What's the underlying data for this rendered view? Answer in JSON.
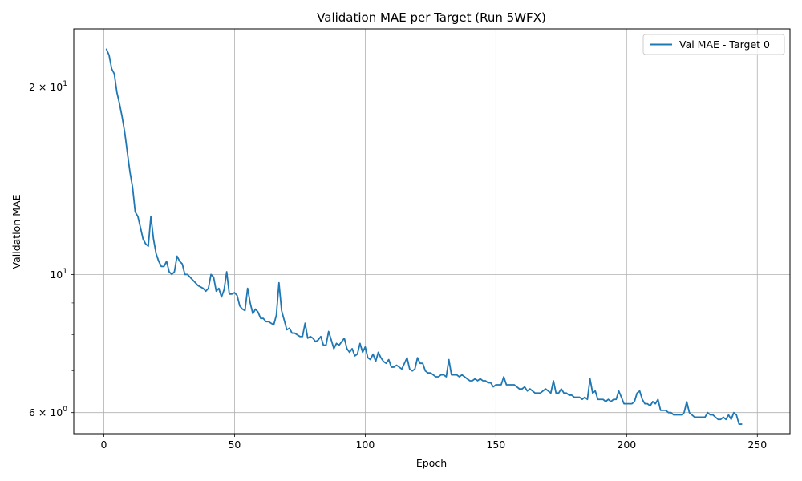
{
  "chart_data": {
    "type": "line",
    "title": "Validation MAE per Target (Run 5WFX)",
    "xlabel": "Epoch",
    "ylabel": "Validation MAE",
    "yscale": "log",
    "xlim": [
      -11.5,
      262.5
    ],
    "ylim": [
      5.55,
      24.8
    ],
    "grid": true,
    "legend_position": "top-right",
    "line_color": "#1f77b4",
    "x_ticks": [
      0,
      50,
      100,
      150,
      200,
      250
    ],
    "x_tick_labels": [
      "0",
      "50",
      "100",
      "150",
      "200",
      "250"
    ],
    "y_major_ticks": [
      {
        "value": 6,
        "base": "6",
        "exp": "0"
      },
      {
        "value": 10,
        "base": "10",
        "exp": "1"
      },
      {
        "value": 20,
        "base": "2",
        "exp": "1"
      }
    ],
    "y_minor_ticks": [
      7,
      8,
      9
    ],
    "series": [
      {
        "name": "Val MAE - Target 0",
        "x_start": 1,
        "x_step": 1,
        "values": [
          23.0,
          22.5,
          21.4,
          21.0,
          19.6,
          18.8,
          17.9,
          16.9,
          15.7,
          14.6,
          13.8,
          12.6,
          12.4,
          11.9,
          11.4,
          11.2,
          11.1,
          12.4,
          11.4,
          10.8,
          10.5,
          10.3,
          10.3,
          10.5,
          10.1,
          10.0,
          10.1,
          10.7,
          10.5,
          10.4,
          10.0,
          10.0,
          9.9,
          9.8,
          9.7,
          9.6,
          9.55,
          9.5,
          9.4,
          9.5,
          10.0,
          9.9,
          9.4,
          9.5,
          9.2,
          9.45,
          10.1,
          9.3,
          9.3,
          9.35,
          9.25,
          8.9,
          8.8,
          8.75,
          9.5,
          9.0,
          8.65,
          8.8,
          8.7,
          8.5,
          8.5,
          8.4,
          8.4,
          8.35,
          8.3,
          8.6,
          9.7,
          8.75,
          8.45,
          8.15,
          8.2,
          8.05,
          8.05,
          8.0,
          7.95,
          7.95,
          8.35,
          7.9,
          7.95,
          7.9,
          7.8,
          7.85,
          7.95,
          7.7,
          7.7,
          8.1,
          7.85,
          7.6,
          7.75,
          7.7,
          7.8,
          7.9,
          7.6,
          7.5,
          7.6,
          7.4,
          7.45,
          7.75,
          7.5,
          7.65,
          7.35,
          7.3,
          7.45,
          7.25,
          7.5,
          7.35,
          7.25,
          7.2,
          7.3,
          7.1,
          7.1,
          7.15,
          7.1,
          7.05,
          7.2,
          7.35,
          7.05,
          7.0,
          7.05,
          7.35,
          7.2,
          7.2,
          7.0,
          6.95,
          6.95,
          6.9,
          6.85,
          6.85,
          6.9,
          6.9,
          6.85,
          7.3,
          6.9,
          6.9,
          6.9,
          6.85,
          6.9,
          6.85,
          6.8,
          6.75,
          6.75,
          6.8,
          6.75,
          6.8,
          6.75,
          6.75,
          6.7,
          6.7,
          6.6,
          6.65,
          6.65,
          6.65,
          6.85,
          6.65,
          6.65,
          6.65,
          6.65,
          6.6,
          6.55,
          6.55,
          6.6,
          6.5,
          6.55,
          6.5,
          6.45,
          6.45,
          6.45,
          6.5,
          6.55,
          6.5,
          6.45,
          6.75,
          6.45,
          6.45,
          6.55,
          6.45,
          6.45,
          6.4,
          6.4,
          6.35,
          6.35,
          6.35,
          6.3,
          6.35,
          6.3,
          6.8,
          6.45,
          6.5,
          6.3,
          6.3,
          6.3,
          6.25,
          6.3,
          6.25,
          6.3,
          6.3,
          6.5,
          6.35,
          6.2,
          6.2,
          6.2,
          6.2,
          6.25,
          6.45,
          6.5,
          6.3,
          6.2,
          6.2,
          6.15,
          6.25,
          6.2,
          6.3,
          6.05,
          6.05,
          6.05,
          6.0,
          6.0,
          5.95,
          5.95,
          5.95,
          5.95,
          6.0,
          6.25,
          6.0,
          5.95,
          5.9,
          5.9,
          5.9,
          5.9,
          5.9,
          6.0,
          5.95,
          5.95,
          5.9,
          5.85,
          5.85,
          5.9,
          5.85,
          5.95,
          5.85,
          6.0,
          5.95,
          5.75,
          5.75
        ]
      }
    ]
  }
}
